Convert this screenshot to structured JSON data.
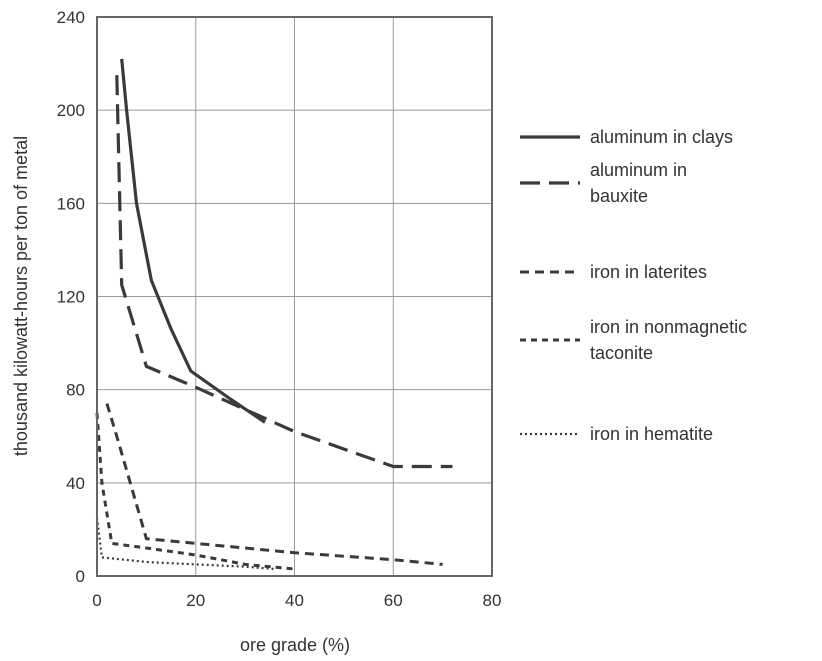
{
  "chart_data": {
    "type": "line",
    "title": "",
    "xlabel": "ore grade (%)",
    "ylabel": "thousand kilowatt-hours per ton of metal",
    "xlim": [
      0,
      80
    ],
    "ylim": [
      0,
      240
    ],
    "xticks": [
      "0",
      "20",
      "40",
      "60",
      "80"
    ],
    "yticks": [
      "0",
      "40",
      "80",
      "120",
      "160",
      "200",
      "240"
    ],
    "grid": true,
    "legend_position": "right",
    "series": [
      {
        "name": "aluminum in clays",
        "name_lines": [
          "aluminum in clays"
        ],
        "style": "solid",
        "color": "#3a3a3a",
        "points": [
          [
            5,
            222
          ],
          [
            6,
            200
          ],
          [
            8,
            160
          ],
          [
            11,
            127
          ],
          [
            15,
            106
          ],
          [
            19,
            88
          ],
          [
            27,
            76
          ],
          [
            34,
            66
          ]
        ]
      },
      {
        "name": "aluminum in bauxite",
        "name_lines": [
          "aluminum in",
          "bauxite"
        ],
        "style": "long-dash",
        "color": "#3a3a3a",
        "points": [
          [
            4,
            215
          ],
          [
            5,
            125
          ],
          [
            10,
            90
          ],
          [
            20,
            81
          ],
          [
            40,
            62
          ],
          [
            60,
            47
          ],
          [
            72,
            47
          ]
        ]
      },
      {
        "name": "iron in laterites",
        "name_lines": [
          "iron in laterites"
        ],
        "style": "short-dash",
        "color": "#3a3a3a",
        "points": [
          [
            2,
            74
          ],
          [
            4,
            60
          ],
          [
            10,
            16
          ],
          [
            20,
            14
          ],
          [
            40,
            10
          ],
          [
            60,
            7
          ],
          [
            70,
            5
          ]
        ]
      },
      {
        "name": "iron in nonmagnetic taconite",
        "name_lines": [
          "iron in nonmagnetic",
          "taconite"
        ],
        "style": "dash",
        "color": "#3a3a3a",
        "points": [
          [
            0,
            70
          ],
          [
            1,
            40
          ],
          [
            3,
            14
          ],
          [
            10,
            12
          ],
          [
            20,
            9
          ],
          [
            30,
            5
          ],
          [
            40,
            3
          ]
        ]
      },
      {
        "name": "iron in hematite",
        "name_lines": [
          "iron in hematite"
        ],
        "style": "dotted",
        "color": "#3a3a3a",
        "points": [
          [
            0,
            25
          ],
          [
            1,
            8
          ],
          [
            10,
            6
          ],
          [
            20,
            5
          ],
          [
            30,
            4
          ],
          [
            36,
            3
          ]
        ]
      }
    ]
  }
}
